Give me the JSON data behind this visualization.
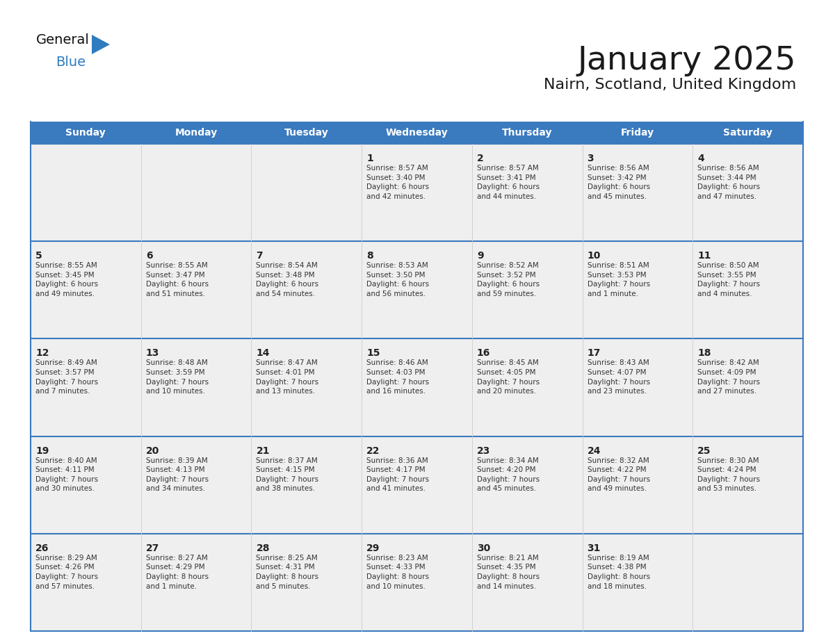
{
  "title": "January 2025",
  "subtitle": "Nairn, Scotland, United Kingdom",
  "header_bg": "#3a7abf",
  "header_text": "#ffffff",
  "row_bg": "#efefef",
  "row_bg_first": "#f5f5f5",
  "border_color": "#3a7abf",
  "cell_divider": "#cccccc",
  "day_names": [
    "Sunday",
    "Monday",
    "Tuesday",
    "Wednesday",
    "Thursday",
    "Friday",
    "Saturday"
  ],
  "title_color": "#1a1a1a",
  "subtitle_color": "#1a1a1a",
  "cell_text_color": "#333333",
  "day_num_color": "#222222",
  "logo_general_color": "#111111",
  "logo_blue_color": "#2e7cbf",
  "logo_triangle_color": "#2e7cbf",
  "weeks": [
    [
      {
        "day": 0,
        "info": ""
      },
      {
        "day": 0,
        "info": ""
      },
      {
        "day": 0,
        "info": ""
      },
      {
        "day": 1,
        "info": "Sunrise: 8:57 AM\nSunset: 3:40 PM\nDaylight: 6 hours\nand 42 minutes."
      },
      {
        "day": 2,
        "info": "Sunrise: 8:57 AM\nSunset: 3:41 PM\nDaylight: 6 hours\nand 44 minutes."
      },
      {
        "day": 3,
        "info": "Sunrise: 8:56 AM\nSunset: 3:42 PM\nDaylight: 6 hours\nand 45 minutes."
      },
      {
        "day": 4,
        "info": "Sunrise: 8:56 AM\nSunset: 3:44 PM\nDaylight: 6 hours\nand 47 minutes."
      }
    ],
    [
      {
        "day": 5,
        "info": "Sunrise: 8:55 AM\nSunset: 3:45 PM\nDaylight: 6 hours\nand 49 minutes."
      },
      {
        "day": 6,
        "info": "Sunrise: 8:55 AM\nSunset: 3:47 PM\nDaylight: 6 hours\nand 51 minutes."
      },
      {
        "day": 7,
        "info": "Sunrise: 8:54 AM\nSunset: 3:48 PM\nDaylight: 6 hours\nand 54 minutes."
      },
      {
        "day": 8,
        "info": "Sunrise: 8:53 AM\nSunset: 3:50 PM\nDaylight: 6 hours\nand 56 minutes."
      },
      {
        "day": 9,
        "info": "Sunrise: 8:52 AM\nSunset: 3:52 PM\nDaylight: 6 hours\nand 59 minutes."
      },
      {
        "day": 10,
        "info": "Sunrise: 8:51 AM\nSunset: 3:53 PM\nDaylight: 7 hours\nand 1 minute."
      },
      {
        "day": 11,
        "info": "Sunrise: 8:50 AM\nSunset: 3:55 PM\nDaylight: 7 hours\nand 4 minutes."
      }
    ],
    [
      {
        "day": 12,
        "info": "Sunrise: 8:49 AM\nSunset: 3:57 PM\nDaylight: 7 hours\nand 7 minutes."
      },
      {
        "day": 13,
        "info": "Sunrise: 8:48 AM\nSunset: 3:59 PM\nDaylight: 7 hours\nand 10 minutes."
      },
      {
        "day": 14,
        "info": "Sunrise: 8:47 AM\nSunset: 4:01 PM\nDaylight: 7 hours\nand 13 minutes."
      },
      {
        "day": 15,
        "info": "Sunrise: 8:46 AM\nSunset: 4:03 PM\nDaylight: 7 hours\nand 16 minutes."
      },
      {
        "day": 16,
        "info": "Sunrise: 8:45 AM\nSunset: 4:05 PM\nDaylight: 7 hours\nand 20 minutes."
      },
      {
        "day": 17,
        "info": "Sunrise: 8:43 AM\nSunset: 4:07 PM\nDaylight: 7 hours\nand 23 minutes."
      },
      {
        "day": 18,
        "info": "Sunrise: 8:42 AM\nSunset: 4:09 PM\nDaylight: 7 hours\nand 27 minutes."
      }
    ],
    [
      {
        "day": 19,
        "info": "Sunrise: 8:40 AM\nSunset: 4:11 PM\nDaylight: 7 hours\nand 30 minutes."
      },
      {
        "day": 20,
        "info": "Sunrise: 8:39 AM\nSunset: 4:13 PM\nDaylight: 7 hours\nand 34 minutes."
      },
      {
        "day": 21,
        "info": "Sunrise: 8:37 AM\nSunset: 4:15 PM\nDaylight: 7 hours\nand 38 minutes."
      },
      {
        "day": 22,
        "info": "Sunrise: 8:36 AM\nSunset: 4:17 PM\nDaylight: 7 hours\nand 41 minutes."
      },
      {
        "day": 23,
        "info": "Sunrise: 8:34 AM\nSunset: 4:20 PM\nDaylight: 7 hours\nand 45 minutes."
      },
      {
        "day": 24,
        "info": "Sunrise: 8:32 AM\nSunset: 4:22 PM\nDaylight: 7 hours\nand 49 minutes."
      },
      {
        "day": 25,
        "info": "Sunrise: 8:30 AM\nSunset: 4:24 PM\nDaylight: 7 hours\nand 53 minutes."
      }
    ],
    [
      {
        "day": 26,
        "info": "Sunrise: 8:29 AM\nSunset: 4:26 PM\nDaylight: 7 hours\nand 57 minutes."
      },
      {
        "day": 27,
        "info": "Sunrise: 8:27 AM\nSunset: 4:29 PM\nDaylight: 8 hours\nand 1 minute."
      },
      {
        "day": 28,
        "info": "Sunrise: 8:25 AM\nSunset: 4:31 PM\nDaylight: 8 hours\nand 5 minutes."
      },
      {
        "day": 29,
        "info": "Sunrise: 8:23 AM\nSunset: 4:33 PM\nDaylight: 8 hours\nand 10 minutes."
      },
      {
        "day": 30,
        "info": "Sunrise: 8:21 AM\nSunset: 4:35 PM\nDaylight: 8 hours\nand 14 minutes."
      },
      {
        "day": 31,
        "info": "Sunrise: 8:19 AM\nSunset: 4:38 PM\nDaylight: 8 hours\nand 18 minutes."
      },
      {
        "day": 0,
        "info": ""
      }
    ]
  ]
}
